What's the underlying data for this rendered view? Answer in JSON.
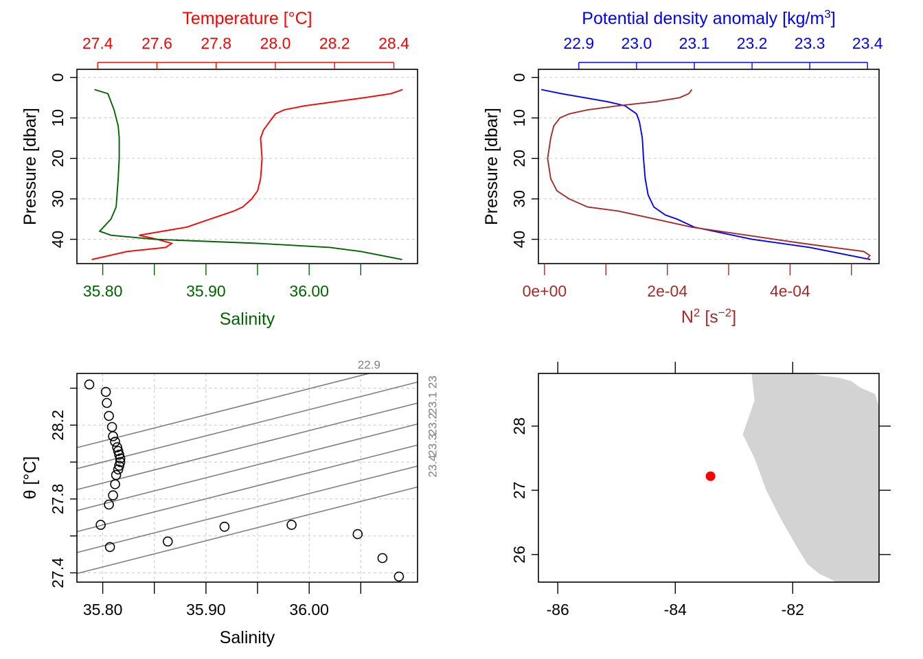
{
  "chart_data": [
    {
      "type": "line",
      "panel": "temperature-salinity-profile",
      "ylabel": "Pressure [dbar]",
      "ylim": [
        46,
        -2
      ],
      "yticks": [
        0,
        10,
        20,
        30,
        40
      ],
      "top_axis": {
        "label": "Temperature [°C]",
        "color": "#ff0000",
        "lim": [
          27.33,
          28.48
        ],
        "ticks": [
          27.4,
          27.6,
          27.8,
          28.0,
          28.2,
          28.4
        ],
        "ticklabels": [
          "27.4",
          "27.6",
          "27.8",
          "28.0",
          "28.2",
          "28.4"
        ]
      },
      "bottom_axis": {
        "label": "Salinity",
        "color": "#006400",
        "lim": [
          35.775,
          36.105
        ],
        "ticks": [
          35.8,
          35.85,
          35.9,
          35.95,
          36.0,
          36.05
        ],
        "ticklabels": [
          "35.80",
          "",
          "35.90",
          "",
          "36.00",
          ""
        ]
      },
      "grid": true,
      "series": [
        {
          "color": "#ff0000",
          "axis": "top",
          "x": [
            28.43,
            28.39,
            28.3,
            28.2,
            28.1,
            28.03,
            28.0,
            27.99,
            27.98,
            27.97,
            27.96,
            27.95,
            27.955,
            27.95,
            27.94,
            27.92,
            27.89,
            27.86,
            27.82,
            27.78,
            27.7,
            27.54,
            27.6,
            27.65,
            27.63,
            27.5,
            27.38
          ],
          "y": [
            3,
            4,
            5,
            6,
            7,
            8,
            9,
            10,
            11,
            12,
            13,
            15,
            20,
            25,
            28,
            30,
            32,
            33,
            34,
            35,
            37,
            39,
            40,
            41,
            42,
            43,
            45
          ]
        },
        {
          "color": "#006400",
          "axis": "bottom",
          "x": [
            35.792,
            35.805,
            35.808,
            35.811,
            35.813,
            35.815,
            35.816,
            35.816,
            35.815,
            35.813,
            35.808,
            35.797,
            35.808,
            35.85,
            35.95,
            36.02,
            36.05,
            36.09
          ],
          "y": [
            3,
            4,
            6,
            8,
            10,
            12,
            15,
            20,
            25,
            32,
            35,
            38,
            39,
            40,
            41,
            42,
            43,
            45
          ]
        }
      ]
    },
    {
      "type": "line",
      "panel": "density-n2-profile",
      "ylabel": "Pressure [dbar]",
      "ylim": [
        46,
        -2
      ],
      "yticks": [
        0,
        10,
        20,
        30,
        40
      ],
      "top_axis": {
        "label": "Potential density anomaly [kg/m³]",
        "color": "#0000ff",
        "lim": [
          22.83,
          23.42
        ],
        "ticks": [
          22.9,
          23.0,
          23.1,
          23.2,
          23.3,
          23.4
        ],
        "ticklabels": [
          "22.9",
          "23.0",
          "23.1",
          "23.2",
          "23.3",
          "23.4"
        ]
      },
      "bottom_axis": {
        "label": "N² [s⁻²]",
        "color": "#a52a2a",
        "lim": [
          -1e-05,
          0.000545
        ],
        "ticks": [
          0,
          0.0001,
          0.0002,
          0.0003,
          0.0004,
          0.0005
        ],
        "ticklabels": [
          "0e+00",
          "",
          "2e-04",
          "",
          "4e-04",
          ""
        ]
      },
      "grid": true,
      "series": [
        {
          "color": "#0000ff",
          "axis": "top",
          "x": [
            22.835,
            22.87,
            22.91,
            22.95,
            22.98,
            22.99,
            23.0,
            23.005,
            23.01,
            23.012,
            23.015,
            23.02,
            23.03,
            23.05,
            23.07,
            23.1,
            23.2,
            23.3,
            23.405
          ],
          "y": [
            3,
            4,
            5,
            6,
            7,
            8,
            9,
            11,
            15,
            20,
            25,
            29,
            32,
            34,
            35,
            37,
            40,
            42,
            45
          ]
        },
        {
          "color": "#a52a2a",
          "axis": "bottom",
          "x": [
            0.00024,
            0.000235,
            0.00022,
            0.00018,
            0.00012,
            7e-05,
            4e-05,
            2.5e-05,
            1.5e-05,
            1e-05,
            5e-06,
            1e-05,
            2e-05,
            4e-05,
            7e-05,
            0.00012,
            0.00018,
            0.00024,
            0.00033,
            0.00042,
            0.00047,
            0.00052,
            0.00053,
            0.000525
          ],
          "y": [
            3,
            4,
            5,
            6,
            7,
            8,
            9,
            10,
            12,
            15,
            20,
            25,
            28,
            30,
            32,
            33,
            35,
            37,
            39,
            41,
            42,
            43,
            44,
            45
          ]
        }
      ]
    },
    {
      "type": "scatter",
      "panel": "ts-diagram",
      "xlabel": "Salinity",
      "ylabel": "θ [°C]",
      "xlim": [
        35.775,
        36.105
      ],
      "ylim": [
        27.35,
        28.48
      ],
      "xticks": [
        35.8,
        35.85,
        35.9,
        35.95,
        36.0,
        36.05
      ],
      "xticklabels": [
        "35.80",
        "",
        "35.90",
        "",
        "36.00",
        ""
      ],
      "yticks": [
        27.4,
        27.6,
        27.8,
        28.0,
        28.2,
        28.4
      ],
      "yticklabels": [
        "27.4",
        "",
        "27.8",
        "",
        "28.2",
        ""
      ],
      "grid": true,
      "isopycnal_slope": 1.42,
      "isopycnals": [
        {
          "label": "22.9",
          "s_at_28": 35.72
        },
        {
          "label": "23",
          "s_at_28": 35.8
        },
        {
          "label": "23.1",
          "s_at_28": 35.88
        },
        {
          "label": "23.2",
          "s_at_28": 35.96
        },
        {
          "label": "23.3",
          "s_at_28": 36.04
        },
        {
          "label": "23.4",
          "s_at_28": 36.12
        },
        {
          "label": "",
          "s_at_28": 36.2
        }
      ],
      "x": [
        35.787,
        35.803,
        35.804,
        35.806,
        35.809,
        35.81,
        35.812,
        35.814,
        35.815,
        35.816,
        35.817,
        35.817,
        35.816,
        35.815,
        35.813,
        35.812,
        35.81,
        35.806,
        35.798,
        35.807,
        35.863,
        35.918,
        35.983,
        36.047,
        36.071,
        36.087
      ],
      "y": [
        28.42,
        28.38,
        28.32,
        28.25,
        28.19,
        28.14,
        28.11,
        28.08,
        28.06,
        28.04,
        28.02,
        28.0,
        27.98,
        27.96,
        27.93,
        27.88,
        27.82,
        27.77,
        27.66,
        27.54,
        27.57,
        27.65,
        27.66,
        27.61,
        27.48,
        27.38
      ],
      "point_color": "#000000"
    },
    {
      "type": "scatter",
      "panel": "station-map",
      "xlim": [
        -86.33,
        -80.53
      ],
      "ylim": [
        25.57,
        28.82
      ],
      "xticks": [
        -86,
        -84,
        -82
      ],
      "xticklabels": [
        "-86",
        "-84",
        "-82"
      ],
      "yticks": [
        26,
        27,
        28
      ],
      "yticklabels": [
        "26",
        "27",
        "28"
      ],
      "land_color": "#d3d3d3",
      "coastline": {
        "lon": [
          -81.7,
          -81.45,
          -81.2,
          -81.0,
          -80.85,
          -80.6,
          -80.53,
          -80.53,
          -81.25,
          -81.55,
          -81.75,
          -81.95,
          -82.2,
          -82.45,
          -82.65,
          -82.85,
          -82.65,
          -82.7
        ],
        "lat": [
          28.82,
          28.78,
          28.75,
          28.7,
          28.6,
          28.5,
          28.3,
          25.57,
          25.57,
          25.7,
          25.85,
          26.15,
          26.55,
          27.0,
          27.5,
          27.87,
          28.4,
          28.82
        ]
      },
      "stations": [
        {
          "lon": -83.4,
          "lat": 27.22,
          "color": "#ff0000"
        }
      ]
    }
  ]
}
